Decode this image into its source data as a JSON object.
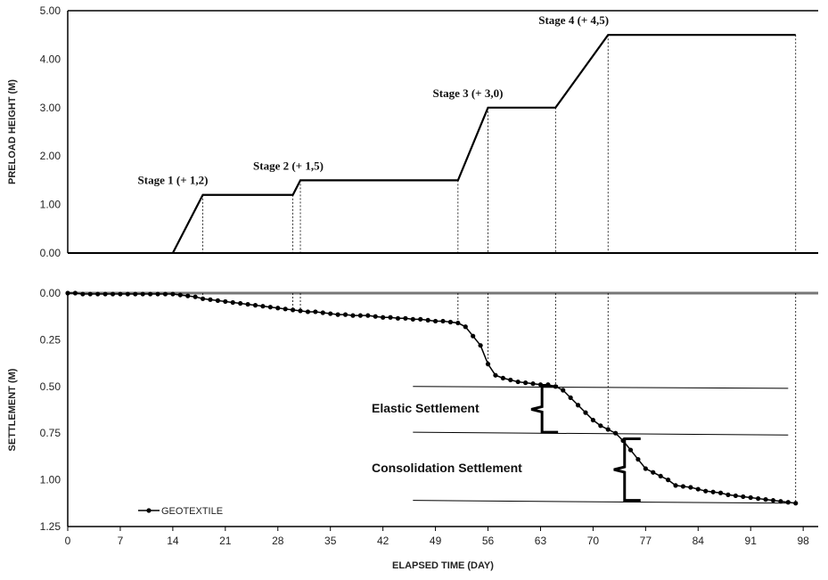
{
  "chart_data": [
    {
      "type": "line",
      "ylabel": "PRELOAD HEIGHT (M)",
      "ylim": [
        0,
        5
      ],
      "yticks": [
        "0.00",
        "1.00",
        "2.00",
        "3.00",
        "4.00",
        "5.00"
      ],
      "series": [
        {
          "x": [
            14,
            18,
            30,
            31,
            52,
            56,
            65,
            72,
            97
          ],
          "y": [
            0,
            1.2,
            1.2,
            1.5,
            1.5,
            3.0,
            3.0,
            4.5,
            4.5
          ]
        }
      ],
      "annotations": [
        {
          "text": "Stage 1 (+ 1,2)",
          "x": 18,
          "y": 1.2
        },
        {
          "text": "Stage 2 (+ 1,5)",
          "x": 31,
          "y": 1.5
        },
        {
          "text": "Stage 3 (+ 3,0)",
          "x": 56,
          "y": 3.0
        },
        {
          "text": "Stage 4 (+ 4,5)",
          "x": 72,
          "y": 4.5
        }
      ]
    },
    {
      "type": "line",
      "xlabel": "ELAPSED TIME (DAY)",
      "ylabel": "SETTLEMENT (M)",
      "xlim": [
        0,
        100
      ],
      "xticks": [
        "0",
        "7",
        "14",
        "21",
        "28",
        "35",
        "42",
        "49",
        "56",
        "63",
        "70",
        "77",
        "84",
        "91",
        "98"
      ],
      "ylim": [
        0,
        1.25
      ],
      "yticks": [
        "0.00",
        "0.25",
        "0.50",
        "0.75",
        "1.00",
        "1.25"
      ],
      "series": [
        {
          "name": "GEOTEXTILE",
          "x": [
            0,
            1,
            2,
            3,
            4,
            5,
            6,
            7,
            8,
            9,
            10,
            11,
            12,
            13,
            14,
            15,
            16,
            17,
            18,
            19,
            20,
            21,
            22,
            23,
            24,
            25,
            26,
            27,
            28,
            29,
            30,
            31,
            32,
            33,
            34,
            35,
            36,
            37,
            38,
            39,
            40,
            41,
            42,
            43,
            44,
            45,
            46,
            47,
            48,
            49,
            50,
            51,
            52,
            53,
            54,
            55,
            56,
            57,
            58,
            59,
            60,
            61,
            62,
            63,
            64,
            65,
            66,
            67,
            68,
            69,
            70,
            71,
            72,
            73,
            74,
            75,
            76,
            77,
            78,
            79,
            80,
            81,
            82,
            83,
            84,
            85,
            86,
            87,
            88,
            89,
            90,
            91,
            92,
            93,
            94,
            95,
            96,
            97
          ],
          "y": [
            0,
            0,
            0.005,
            0.005,
            0.005,
            0.005,
            0.005,
            0.005,
            0.005,
            0.005,
            0.005,
            0.005,
            0.005,
            0.005,
            0.005,
            0.01,
            0.015,
            0.02,
            0.03,
            0.035,
            0.04,
            0.045,
            0.05,
            0.055,
            0.06,
            0.065,
            0.07,
            0.075,
            0.08,
            0.085,
            0.09,
            0.095,
            0.1,
            0.1,
            0.105,
            0.11,
            0.115,
            0.115,
            0.12,
            0.12,
            0.12,
            0.125,
            0.13,
            0.13,
            0.135,
            0.135,
            0.14,
            0.14,
            0.145,
            0.15,
            0.15,
            0.155,
            0.16,
            0.18,
            0.23,
            0.28,
            0.38,
            0.44,
            0.455,
            0.465,
            0.475,
            0.48,
            0.485,
            0.49,
            0.49,
            0.5,
            0.52,
            0.56,
            0.6,
            0.64,
            0.68,
            0.71,
            0.73,
            0.75,
            0.79,
            0.84,
            0.89,
            0.94,
            0.96,
            0.98,
            1.0,
            1.03,
            1.035,
            1.04,
            1.05,
            1.06,
            1.065,
            1.07,
            1.08,
            1.085,
            1.09,
            1.095,
            1.1,
            1.105,
            1.11,
            1.115,
            1.12,
            1.125
          ]
        }
      ],
      "legend": "bottom-left",
      "annotations": [
        {
          "text": "Elastic Settlement"
        },
        {
          "text": "Consolidation Settlement"
        }
      ]
    }
  ]
}
